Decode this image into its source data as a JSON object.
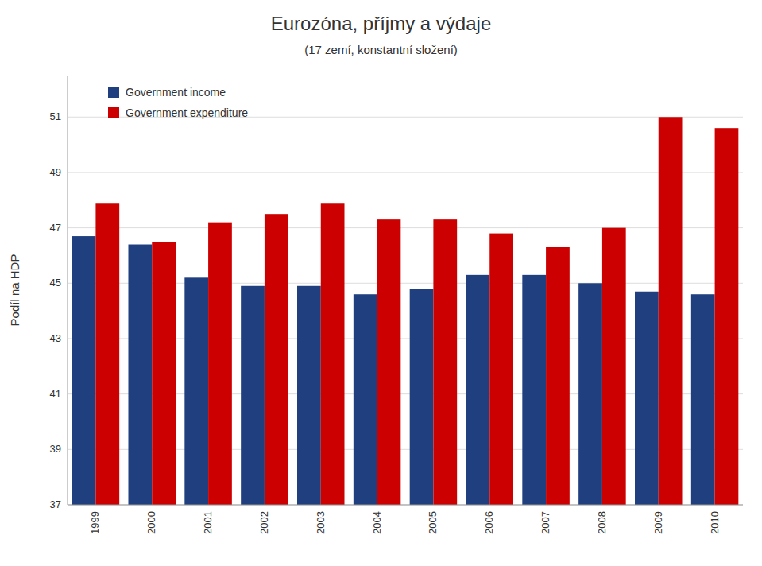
{
  "chart_data": {
    "type": "bar",
    "title": "Eurozóna, příjmy a výdaje",
    "subtitle": "(17 zemí, konstantní složení)",
    "ylabel": "Podíl na HDP",
    "categories": [
      "1999",
      "2000",
      "2001",
      "2002",
      "2003",
      "2004",
      "2005",
      "2006",
      "2007",
      "2008",
      "2009",
      "2010"
    ],
    "series": [
      {
        "name": "Government income",
        "color": "#1F3F7F",
        "values": [
          46.7,
          46.4,
          45.2,
          44.9,
          44.9,
          44.6,
          44.8,
          45.3,
          45.3,
          45.0,
          44.7,
          44.6
        ]
      },
      {
        "name": "Government expenditure",
        "color": "#CC0000",
        "values": [
          47.9,
          46.5,
          47.2,
          47.5,
          47.9,
          47.3,
          47.3,
          46.8,
          46.3,
          47.0,
          51.0,
          50.6
        ]
      }
    ],
    "ylim": [
      37,
      52.5
    ],
    "yticks": [
      37,
      39,
      41,
      43,
      45,
      47,
      49,
      51
    ],
    "grid": true,
    "legend": "upper left"
  }
}
